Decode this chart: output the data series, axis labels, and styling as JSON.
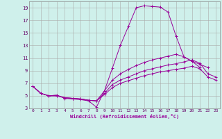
{
  "background_color": "#cff0eb",
  "grid_color": "#aaaaaa",
  "line_color": "#990099",
  "xlabel": "Windchill (Refroidissement éolien,°C)",
  "xlim": [
    -0.5,
    23.5
  ],
  "ylim": [
    3,
    20
  ],
  "xticks": [
    0,
    1,
    2,
    3,
    4,
    5,
    6,
    7,
    8,
    9,
    10,
    11,
    12,
    13,
    14,
    15,
    16,
    17,
    18,
    19,
    20,
    21,
    22,
    23
  ],
  "yticks": [
    3,
    5,
    7,
    9,
    11,
    13,
    15,
    17,
    19
  ],
  "lines": [
    {
      "x": [
        0,
        1,
        2,
        3,
        4,
        5,
        6,
        7,
        8,
        9,
        10,
        11,
        12,
        13,
        14,
        15,
        16,
        17,
        18,
        19,
        20,
        21
      ],
      "y": [
        6.5,
        5.4,
        5.0,
        5.1,
        4.6,
        4.5,
        4.4,
        4.2,
        3.2,
        5.8,
        9.4,
        13.0,
        16.0,
        19.0,
        19.3,
        19.2,
        19.1,
        18.3,
        14.5,
        11.2,
        10.5,
        9.5
      ]
    },
    {
      "x": [
        0,
        1,
        2,
        3,
        4,
        5,
        6,
        7,
        8,
        9,
        10,
        11,
        12,
        13,
        14,
        15,
        16,
        17,
        18,
        19,
        20,
        21,
        22
      ],
      "y": [
        6.5,
        5.4,
        5.0,
        5.1,
        4.7,
        4.6,
        4.5,
        4.3,
        4.2,
        5.8,
        7.5,
        8.5,
        9.2,
        9.8,
        10.3,
        10.7,
        11.0,
        11.3,
        11.6,
        11.2,
        10.5,
        10.0,
        9.5
      ]
    },
    {
      "x": [
        0,
        1,
        2,
        3,
        4,
        5,
        6,
        7,
        8,
        9,
        10,
        11,
        12,
        13,
        14,
        15,
        16,
        17,
        18,
        19,
        20,
        21,
        22,
        23
      ],
      "y": [
        6.5,
        5.4,
        5.0,
        5.0,
        4.7,
        4.6,
        4.5,
        4.3,
        4.2,
        5.4,
        6.8,
        7.5,
        8.0,
        8.5,
        9.0,
        9.3,
        9.6,
        9.9,
        10.1,
        10.4,
        10.7,
        10.2,
        8.5,
        8.0
      ]
    },
    {
      "x": [
        0,
        1,
        2,
        3,
        4,
        5,
        6,
        7,
        8,
        9,
        10,
        11,
        12,
        13,
        14,
        15,
        16,
        17,
        18,
        19,
        20,
        21,
        22,
        23
      ],
      "y": [
        6.5,
        5.4,
        5.0,
        5.0,
        4.7,
        4.6,
        4.5,
        4.3,
        4.2,
        5.2,
        6.3,
        7.0,
        7.4,
        7.8,
        8.2,
        8.5,
        8.8,
        9.0,
        9.2,
        9.4,
        9.7,
        9.3,
        8.0,
        7.5
      ]
    }
  ]
}
